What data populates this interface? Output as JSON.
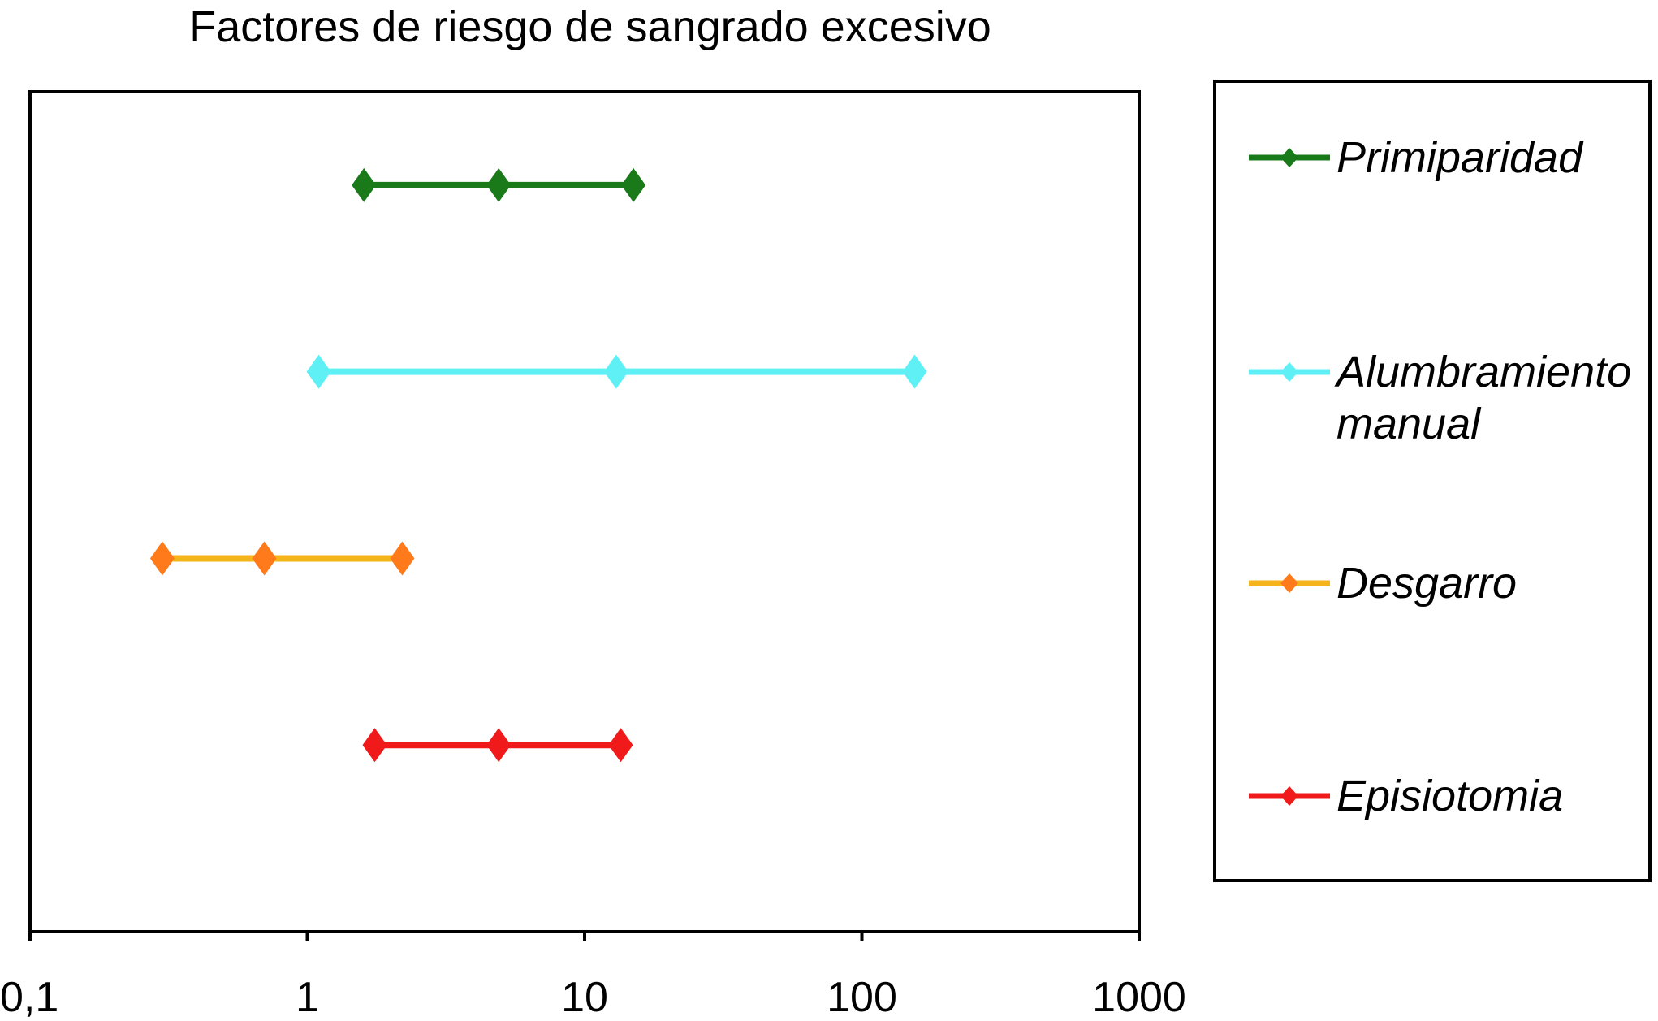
{
  "chart_data": {
    "type": "interval",
    "title": "Factores de riesgo de sangrado excesivo",
    "xlabel": "",
    "ylabel": "",
    "x_scale": "log",
    "xlim": [
      0.1,
      1000
    ],
    "x_ticks": [
      0.1,
      1,
      10,
      100,
      1000
    ],
    "x_tick_labels": [
      "0,1",
      "1",
      "10",
      "100",
      "1000"
    ],
    "grid": false,
    "legend_position": "right",
    "series": [
      {
        "name": "Primiparidad",
        "color": "#1a7a1a",
        "values": [
          1.6,
          4.9,
          15
        ]
      },
      {
        "name": "Alumbramiento manual",
        "color": "#5ef0f5",
        "values": [
          1.1,
          13,
          155
        ]
      },
      {
        "name": "Desgarro",
        "color": "#ff7a1a",
        "line_color": "#f5b51a",
        "values": [
          0.3,
          0.7,
          2.2
        ]
      },
      {
        "name": "Episiotomia",
        "color": "#f01a1a",
        "values": [
          1.75,
          4.9,
          13.5
        ]
      }
    ]
  }
}
